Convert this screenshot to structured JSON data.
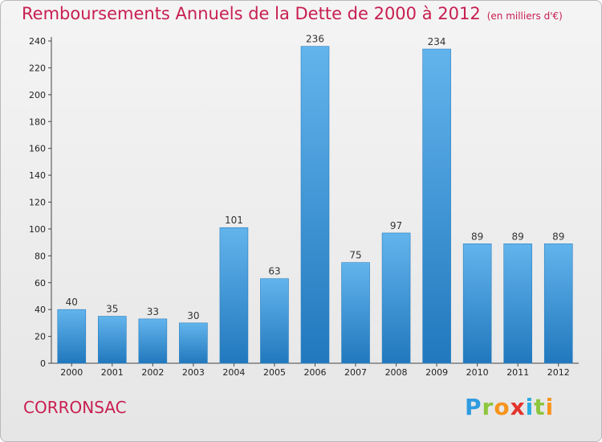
{
  "title": "Remboursements Annuels de la Dette de 2000 à 2012",
  "unit": "(en milliers d'€)",
  "commune": "CORRONSAC",
  "logo": {
    "letters": [
      "P",
      "r",
      "o",
      "x",
      "i",
      "t",
      "i"
    ],
    "colors": [
      "#2f9be0",
      "#8dc63f",
      "#f7941d",
      "#e2342d",
      "#29abe2",
      "#8dc63f",
      "#f7941d"
    ]
  },
  "colors": {
    "title": "#c81e50",
    "bar_top": "#62b4ec",
    "bar_bottom": "#2178bd"
  },
  "chart_data": {
    "type": "bar",
    "categories": [
      "2000",
      "2001",
      "2002",
      "2003",
      "2004",
      "2005",
      "2006",
      "2007",
      "2008",
      "2009",
      "2010",
      "2011",
      "2012"
    ],
    "values": [
      40,
      35,
      33,
      30,
      101,
      63,
      236,
      75,
      97,
      234,
      89,
      89,
      89
    ],
    "data_labels": [
      "40",
      "35",
      "33",
      "30",
      "101",
      "63",
      "236",
      "75",
      "97",
      "234",
      "89",
      "89",
      "89"
    ],
    "title": "Remboursements Annuels de la Dette de 2000 à 2012",
    "xlabel": "",
    "ylabel": "",
    "ylim": [
      0,
      240
    ],
    "yticks": [
      0,
      20,
      40,
      60,
      80,
      100,
      120,
      140,
      160,
      180,
      200,
      220,
      240
    ],
    "grid": false,
    "legend": "none"
  }
}
